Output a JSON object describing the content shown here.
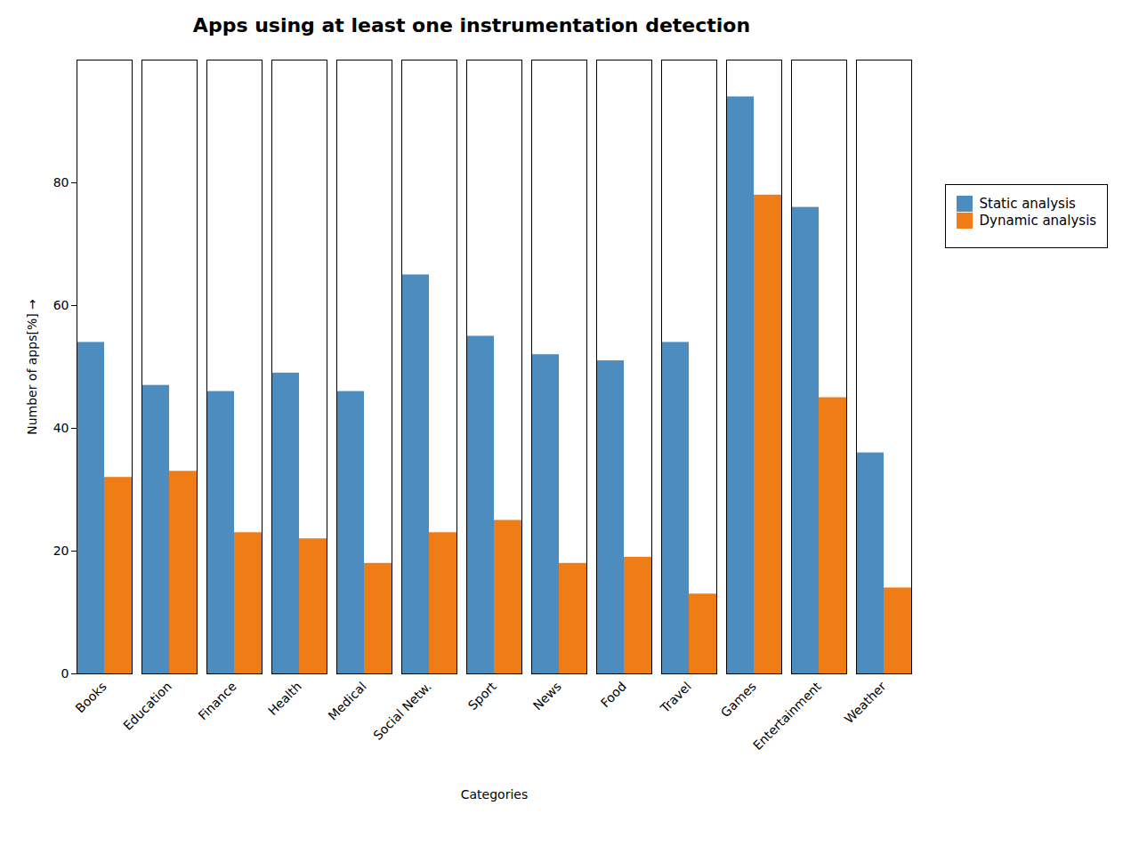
{
  "chart_data": {
    "type": "bar",
    "title": "Apps using at least one instrumentation detection",
    "xlabel": "Categories",
    "ylabel": "Number of apps[%]",
    "categories": [
      "Books",
      "Education",
      "Finance",
      "Health",
      "Medical",
      "Social Netw.",
      "Sport",
      "News",
      "Food",
      "Travel",
      "Games",
      "Entertainment",
      "Weather"
    ],
    "series": [
      {
        "name": "Static analysis",
        "color": "#4c8cbf",
        "values": [
          54,
          47,
          46,
          49,
          46,
          65,
          55,
          52,
          51,
          54,
          94,
          76,
          36
        ]
      },
      {
        "name": "Dynamic analysis",
        "color": "#f07c16",
        "values": [
          32,
          33,
          23,
          22,
          18,
          23,
          25,
          18,
          19,
          13,
          78,
          45,
          14
        ]
      }
    ],
    "ylim": [
      0,
      100
    ],
    "yticks": [
      0,
      20,
      40,
      60,
      80
    ],
    "grid": false,
    "legend": "right"
  }
}
